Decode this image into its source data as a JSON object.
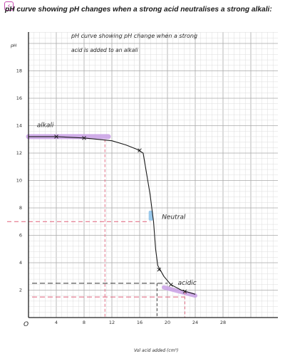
{
  "page": {
    "back_icon": "chevron-left-icon",
    "title": "pH curve showing pH changes when a strong acid neutralises a strong alkali:"
  },
  "chart_data": {
    "type": "line",
    "title_line1": "pH curve showing pH change when a strong",
    "title_line2": "acid is added to an alkali",
    "xlabel": "Vol acid added (cm³)",
    "ylabel": "pH",
    "xlim": [
      0,
      40
    ],
    "ylim": [
      0,
      20
    ],
    "x_ticks": [
      4,
      8,
      12,
      16,
      20,
      24,
      28
    ],
    "y_ticks": [
      2,
      4,
      6,
      8,
      10,
      12,
      14,
      16,
      18
    ],
    "origin_label": "O",
    "grid": true,
    "series": [
      {
        "values": [
          {
            "x": 0,
            "y": 13.2
          },
          {
            "x": 4,
            "y": 13.2
          },
          {
            "x": 8,
            "y": 13.1
          },
          {
            "x": 12,
            "y": 12.9
          },
          {
            "x": 14,
            "y": 12.6
          },
          {
            "x": 15.5,
            "y": 12.3
          },
          {
            "x": 16.5,
            "y": 12.0
          },
          {
            "x": 17.5,
            "y": 9.0
          },
          {
            "x": 18,
            "y": 7.0
          },
          {
            "x": 18.3,
            "y": 5.0
          },
          {
            "x": 18.6,
            "y": 3.8
          },
          {
            "x": 19.5,
            "y": 3.0
          },
          {
            "x": 20.5,
            "y": 2.4
          },
          {
            "x": 22,
            "y": 2.0
          },
          {
            "x": 24,
            "y": 1.7
          }
        ],
        "markers": [
          {
            "x": 4,
            "y": 13.2
          },
          {
            "x": 8,
            "y": 13.1
          },
          {
            "x": 16,
            "y": 12.2
          },
          {
            "x": 18.8,
            "y": 3.5
          },
          {
            "x": 20.5,
            "y": 2.4
          },
          {
            "x": 22.5,
            "y": 1.9
          }
        ]
      }
    ],
    "annotations": [
      {
        "text": "alkali",
        "x": 1.2,
        "y": 13.9
      },
      {
        "text": "Neutral",
        "x": 19.2,
        "y": 7.2
      },
      {
        "text": "acidic",
        "x": 21.5,
        "y": 2.4
      }
    ],
    "colors": {
      "curve": "#1a1a1a",
      "highlight_purple": "#c9a0e6",
      "highlight_blue": "#8fc3ea",
      "guide_red": "#e0607a",
      "guide_black": "#333333",
      "grid_major": "#a9a9a9",
      "grid_minor": "#dcdcdc"
    },
    "guides": {
      "alkali_x": 11,
      "neutral_y": 7,
      "acid_y_upper": 2.5,
      "acid_y_lower": 1.5,
      "acid_x_upper": 18.5,
      "acid_x_lower": 22.5
    }
  }
}
